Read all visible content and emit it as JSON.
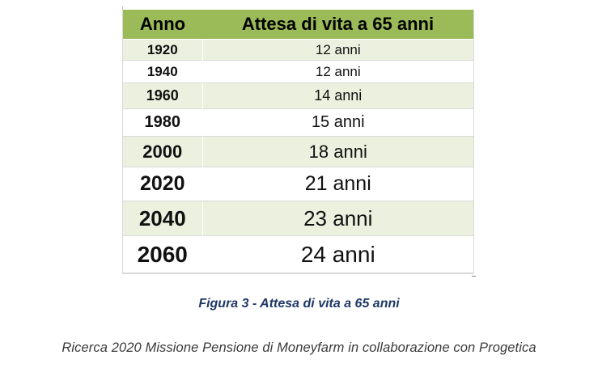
{
  "table": {
    "headers": [
      "Anno",
      "Attesa di vita a 65 anni"
    ],
    "rows": [
      {
        "year": "1920",
        "value": "12 anni"
      },
      {
        "year": "1940",
        "value": "12 anni"
      },
      {
        "year": "1960",
        "value": "14 anni"
      },
      {
        "year": "1980",
        "value": "15 anni"
      },
      {
        "year": "2000",
        "value": "18 anni"
      },
      {
        "year": "2020",
        "value": "21 anni"
      },
      {
        "year": "2040",
        "value": "23 anni"
      },
      {
        "year": "2060",
        "value": "24 anni"
      }
    ]
  },
  "caption": "Figura 3 - Attesa di vita a 65 anni",
  "source": "Ricerca 2020 Missione Pensione di Moneyfarm in collaborazione con Progetica",
  "colors": {
    "header_bg": "#9bbb59",
    "band_bg": "#ebf1de",
    "caption_color": "#1f3864"
  }
}
